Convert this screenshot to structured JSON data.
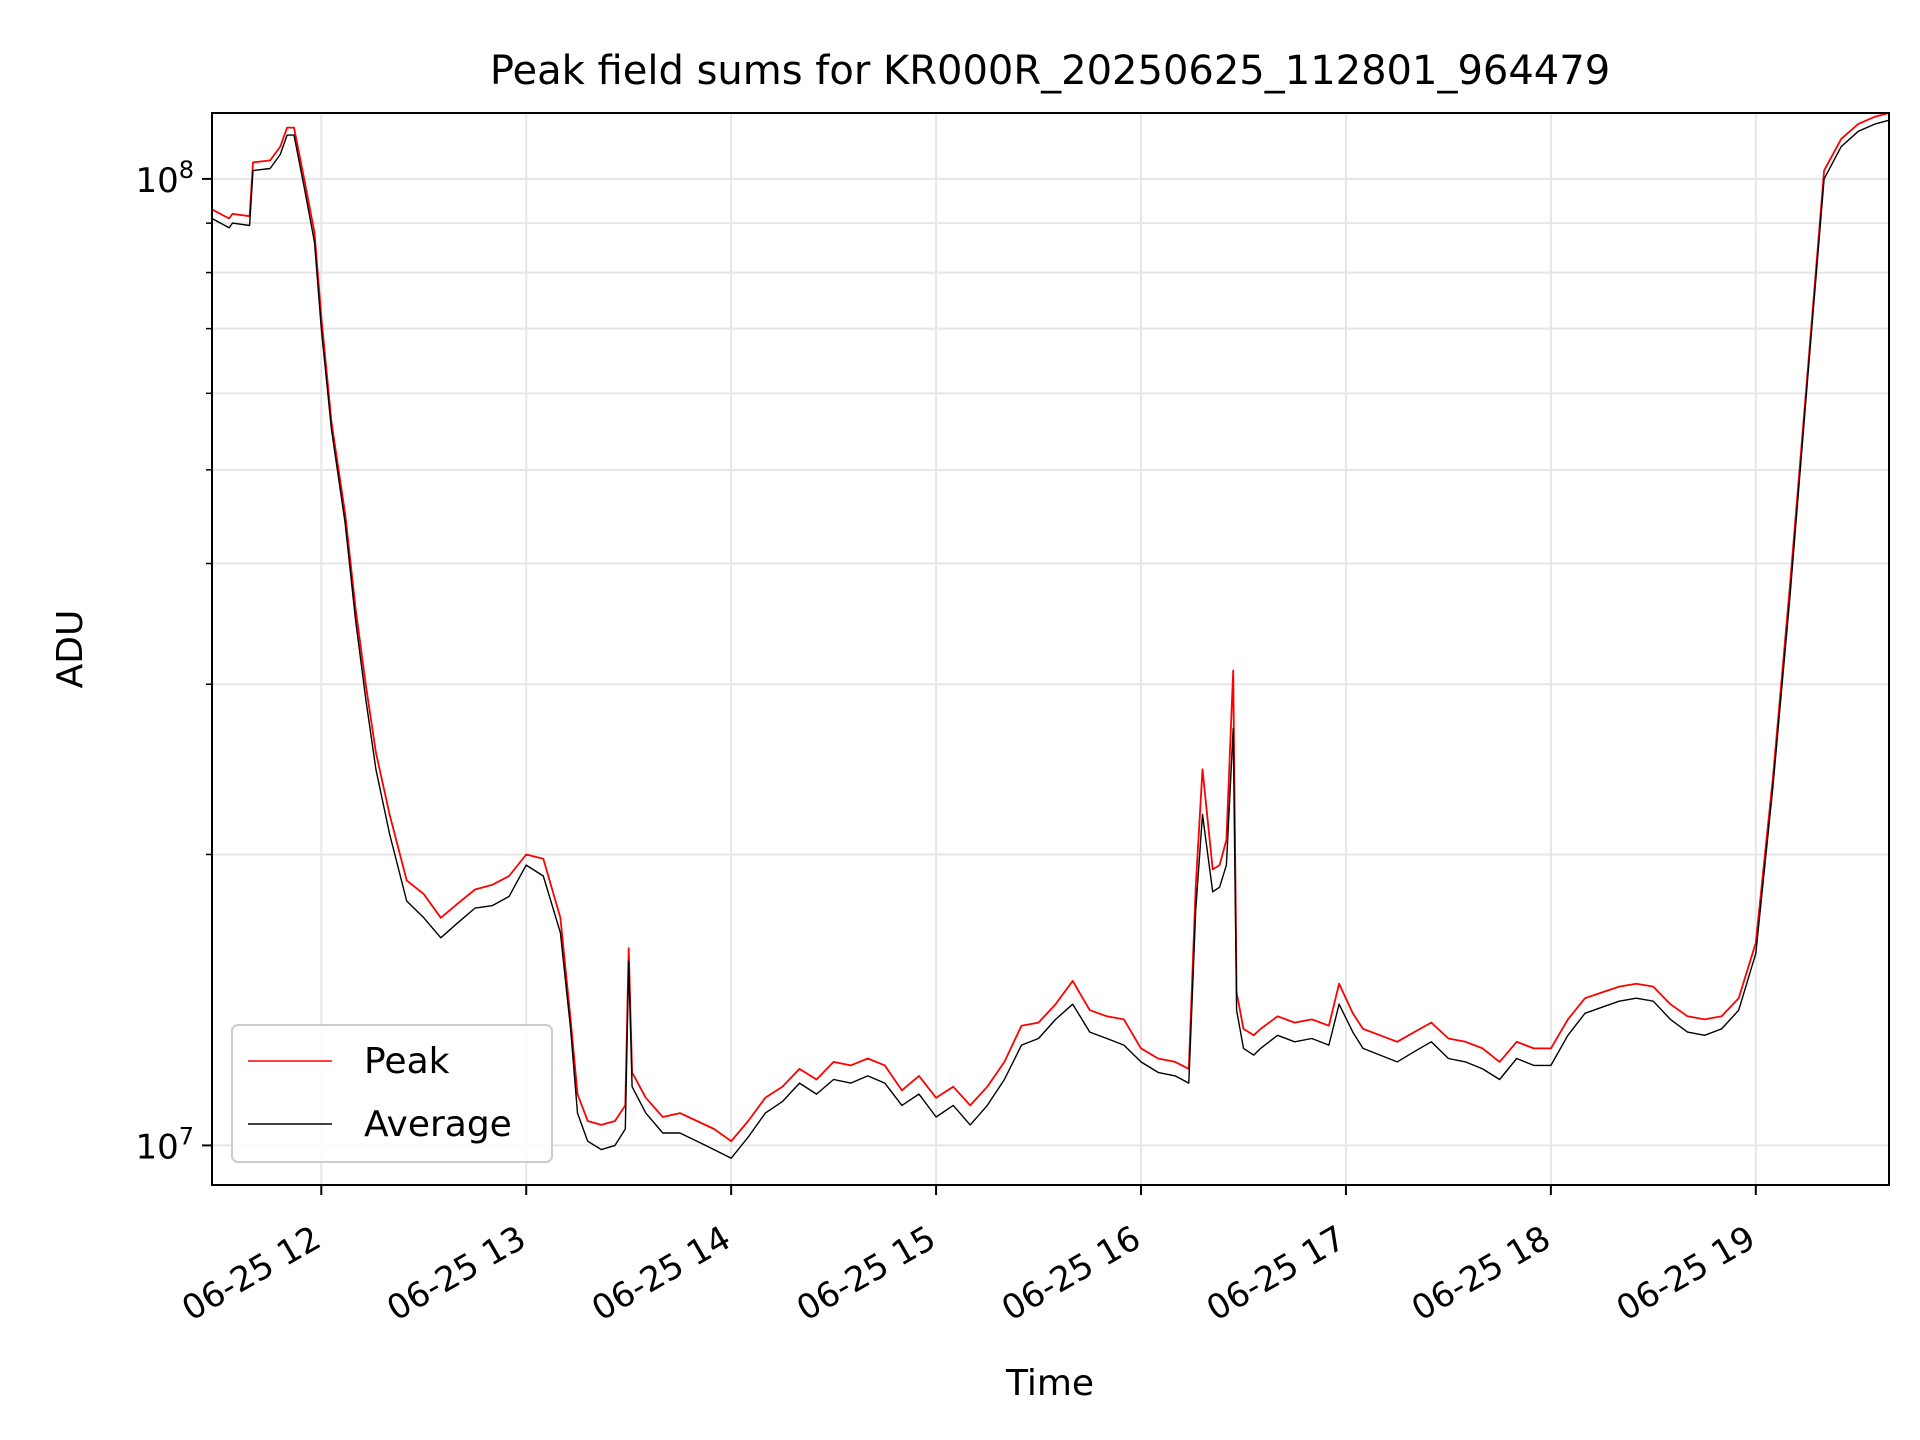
{
  "chart_data": {
    "type": "line",
    "title": "Peak field sums for KR000R_20250625_112801_964479",
    "xlabel": "Time",
    "ylabel": "ADU",
    "xlim": [
      "06-25 11:28",
      "06-25 19:39"
    ],
    "ylim": [
      9100000,
      117000000
    ],
    "yscale": "log",
    "grid": true,
    "legend_position": "lower-left",
    "x_ticks": [
      {
        "label": "06-25 12",
        "x": "06-25 12:00"
      },
      {
        "label": "06-25 13",
        "x": "06-25 13:00"
      },
      {
        "label": "06-25 14",
        "x": "06-25 14:00"
      },
      {
        "label": "06-25 15",
        "x": "06-25 15:00"
      },
      {
        "label": "06-25 16",
        "x": "06-25 16:00"
      },
      {
        "label": "06-25 17",
        "x": "06-25 17:00"
      },
      {
        "label": "06-25 18",
        "x": "06-25 18:00"
      },
      {
        "label": "06-25 19",
        "x": "06-25 19:00"
      }
    ],
    "y_ticks": [
      {
        "base": "10",
        "exp": "7",
        "value": 10000000
      },
      {
        "base": "10",
        "exp": "8",
        "value": 100000000
      }
    ],
    "x": [
      "06-25 11:28",
      "06-25 11:33",
      "06-25 11:34",
      "06-25 11:39",
      "06-25 11:40",
      "06-25 11:45",
      "06-25 11:48",
      "06-25 11:50",
      "06-25 11:52",
      "06-25 11:55",
      "06-25 11:58",
      "06-25 12:00",
      "06-25 12:03",
      "06-25 12:07",
      "06-25 12:10",
      "06-25 12:13",
      "06-25 12:16",
      "06-25 12:20",
      "06-25 12:25",
      "06-25 12:30",
      "06-25 12:35",
      "06-25 12:40",
      "06-25 12:45",
      "06-25 12:50",
      "06-25 12:55",
      "06-25 13:00",
      "06-25 13:05",
      "06-25 13:10",
      "06-25 13:13",
      "06-25 13:15",
      "06-25 13:18",
      "06-25 13:22",
      "06-25 13:26",
      "06-25 13:29",
      "06-25 13:30",
      "06-25 13:31",
      "06-25 13:35",
      "06-25 13:40",
      "06-25 13:45",
      "06-25 13:50",
      "06-25 13:55",
      "06-25 14:00",
      "06-25 14:05",
      "06-25 14:10",
      "06-25 14:15",
      "06-25 14:20",
      "06-25 14:25",
      "06-25 14:30",
      "06-25 14:35",
      "06-25 14:40",
      "06-25 14:45",
      "06-25 14:50",
      "06-25 14:55",
      "06-25 15:00",
      "06-25 15:05",
      "06-25 15:10",
      "06-25 15:15",
      "06-25 15:20",
      "06-25 15:25",
      "06-25 15:30",
      "06-25 15:35",
      "06-25 15:40",
      "06-25 15:45",
      "06-25 15:50",
      "06-25 15:55",
      "06-25 16:00",
      "06-25 16:05",
      "06-25 16:10",
      "06-25 16:14",
      "06-25 16:16",
      "06-25 16:18",
      "06-25 16:21",
      "06-25 16:23",
      "06-25 16:25",
      "06-25 16:27",
      "06-25 16:28",
      "06-25 16:30",
      "06-25 16:33",
      "06-25 16:35",
      "06-25 16:40",
      "06-25 16:45",
      "06-25 16:50",
      "06-25 16:55",
      "06-25 16:58",
      "06-25 17:02",
      "06-25 17:05",
      "06-25 17:10",
      "06-25 17:15",
      "06-25 17:20",
      "06-25 17:25",
      "06-25 17:30",
      "06-25 17:35",
      "06-25 17:40",
      "06-25 17:45",
      "06-25 17:50",
      "06-25 17:55",
      "06-25 18:00",
      "06-25 18:05",
      "06-25 18:10",
      "06-25 18:15",
      "06-25 18:20",
      "06-25 18:25",
      "06-25 18:30",
      "06-25 18:35",
      "06-25 18:40",
      "06-25 18:45",
      "06-25 18:50",
      "06-25 18:55",
      "06-25 19:00",
      "06-25 19:05",
      "06-25 19:10",
      "06-25 19:15",
      "06-25 19:20",
      "06-25 19:25",
      "06-25 19:30",
      "06-25 19:35",
      "06-25 19:39"
    ],
    "series": [
      {
        "name": "Peak",
        "color": "#ff0000",
        "values": [
          93000000,
          91000000,
          92000000,
          91500000,
          104000000,
          104500000,
          108000000,
          113000000,
          113000000,
          100000000,
          88000000,
          72000000,
          56000000,
          45000000,
          36000000,
          30000000,
          25500000,
          22000000,
          18800000,
          18200000,
          17200000,
          17800000,
          18400000,
          18600000,
          19000000,
          20000000,
          19800000,
          17200000,
          13500000,
          11300000,
          10600000,
          10500000,
          10600000,
          11000000,
          16000000,
          11900000,
          11200000,
          10700000,
          10800000,
          10600000,
          10400000,
          10100000,
          10600000,
          11200000,
          11500000,
          12000000,
          11700000,
          12200000,
          12100000,
          12300000,
          12100000,
          11400000,
          11800000,
          11200000,
          11500000,
          11000000,
          11500000,
          12200000,
          13300000,
          13400000,
          14000000,
          14800000,
          13800000,
          13600000,
          13500000,
          12600000,
          12300000,
          12200000,
          12000000,
          18500000,
          24500000,
          19300000,
          19500000,
          20700000,
          31000000,
          14400000,
          13200000,
          13000000,
          13200000,
          13600000,
          13400000,
          13500000,
          13300000,
          14700000,
          13700000,
          13200000,
          13000000,
          12800000,
          13100000,
          13400000,
          12900000,
          12800000,
          12600000,
          12200000,
          12800000,
          12600000,
          12600000,
          13500000,
          14200000,
          14400000,
          14600000,
          14700000,
          14600000,
          14000000,
          13600000,
          13500000,
          13600000,
          14200000,
          16200000,
          24000000,
          38000000,
          62000000,
          102000000,
          110000000,
          114000000,
          116000000,
          117000000
        ]
      },
      {
        "name": "Average",
        "color": "#000000",
        "values": [
          91000000,
          89000000,
          90000000,
          89500000,
          102000000,
          102500000,
          106000000,
          111000000,
          111000000,
          98000000,
          86000000,
          70000000,
          55000000,
          44000000,
          35000000,
          29000000,
          24500000,
          21000000,
          17900000,
          17200000,
          16400000,
          17000000,
          17600000,
          17700000,
          18100000,
          19500000,
          19000000,
          16600000,
          13200000,
          10800000,
          10100000,
          9900000,
          10000000,
          10400000,
          15500000,
          11500000,
          10800000,
          10300000,
          10300000,
          10100000,
          9900000,
          9700000,
          10200000,
          10800000,
          11100000,
          11600000,
          11300000,
          11700000,
          11600000,
          11800000,
          11600000,
          11000000,
          11300000,
          10700000,
          11000000,
          10500000,
          11000000,
          11700000,
          12700000,
          12900000,
          13500000,
          14000000,
          13100000,
          12900000,
          12700000,
          12200000,
          11900000,
          11800000,
          11600000,
          17500000,
          22000000,
          18300000,
          18500000,
          19500000,
          27000000,
          13800000,
          12600000,
          12400000,
          12600000,
          13000000,
          12800000,
          12900000,
          12700000,
          14000000,
          13100000,
          12600000,
          12400000,
          12200000,
          12500000,
          12800000,
          12300000,
          12200000,
          12000000,
          11700000,
          12300000,
          12100000,
          12100000,
          13000000,
          13700000,
          13900000,
          14100000,
          14200000,
          14100000,
          13500000,
          13100000,
          13000000,
          13200000,
          13800000,
          15800000,
          23500000,
          37000000,
          61000000,
          100000000,
          108000000,
          112000000,
          114000000,
          115000000
        ]
      }
    ]
  }
}
